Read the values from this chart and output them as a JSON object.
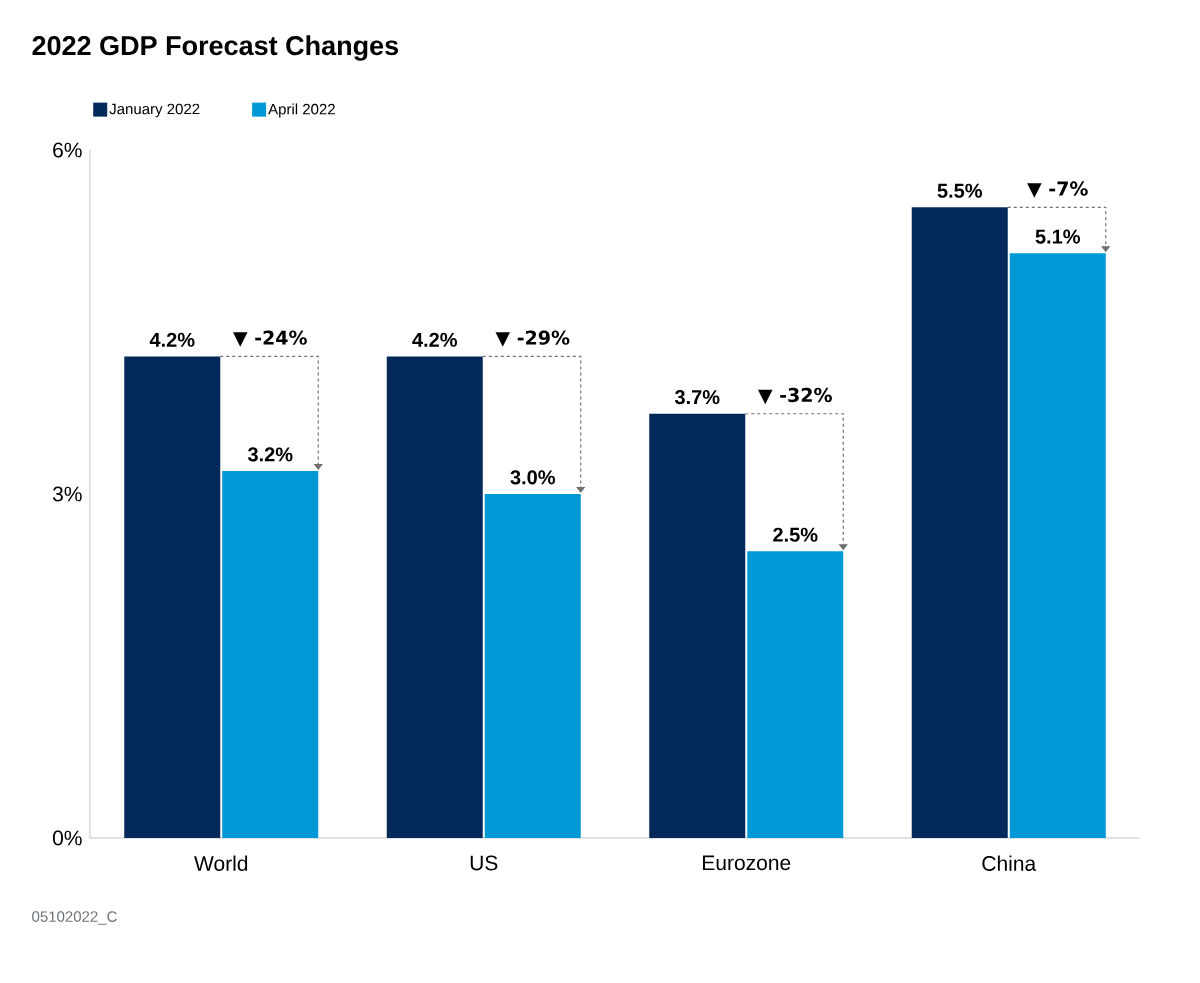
{
  "chart_data": {
    "type": "bar",
    "title": "2022 GDP Forecast Changes",
    "categories": [
      "World",
      "US",
      "Eurozone",
      "China"
    ],
    "series": [
      {
        "name": "January 2022",
        "color": "#03285a",
        "values": [
          4.2,
          4.2,
          3.7,
          5.5
        ],
        "value_labels": [
          "4.2%",
          "4.2%",
          "3.7%",
          "5.5%"
        ]
      },
      {
        "name": "April 2022",
        "color": "#0099d6",
        "values": [
          3.2,
          3.0,
          2.5,
          5.1
        ],
        "value_labels": [
          "3.2%",
          "3.0%",
          "2.5%",
          "5.1%"
        ]
      }
    ],
    "ylim": [
      0,
      6
    ],
    "yticks": [
      {
        "value": 0,
        "label": "0%"
      },
      {
        "value": 3,
        "label": "3%"
      },
      {
        "value": 6,
        "label": "6%"
      }
    ],
    "legend": "top left",
    "annotations": [
      {
        "text": "▼ -24%",
        "x": "World",
        "y": 4.2
      },
      {
        "text": "▼ -29%",
        "x": "US",
        "y": 4.2
      },
      {
        "text": "▼ -32%",
        "x": "Eurozone",
        "y": 3.7
      },
      {
        "text": "▼ -7%",
        "x": "China",
        "y": 5.5
      },
      "05102022_C"
    ]
  }
}
